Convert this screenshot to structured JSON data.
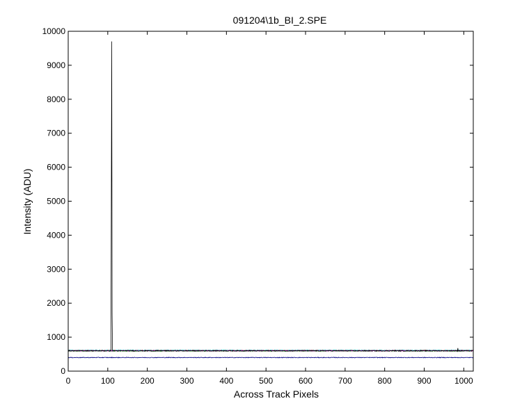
{
  "chart_data": {
    "type": "line",
    "title": "091204\\1b_BI_2.SPE",
    "xlabel": "Across Track Pixels",
    "ylabel": "Intensity (ADU)",
    "xlim": [
      0,
      1024
    ],
    "ylim": [
      0,
      10000
    ],
    "xticks": [
      0,
      100,
      200,
      300,
      400,
      500,
      600,
      700,
      800,
      900,
      1000
    ],
    "yticks": [
      0,
      1000,
      2000,
      3000,
      4000,
      5000,
      6000,
      7000,
      8000,
      9000,
      10000
    ],
    "grid": false,
    "series": [
      {
        "color": "#000000",
        "baseline": 600,
        "noise": 15,
        "spikes": [
          {
            "x": 109,
            "y": 5200
          },
          {
            "x": 110,
            "y": 9700
          },
          {
            "x": 111,
            "y": 1700
          },
          {
            "x": 985,
            "y": 680
          }
        ]
      },
      {
        "color": "#ff0000",
        "baseline": 605,
        "noise": 12,
        "spikes": []
      },
      {
        "color": "#00aa00",
        "baseline": 595,
        "noise": 12,
        "spikes": []
      },
      {
        "color": "#00c0c0",
        "baseline": 610,
        "noise": 12,
        "spikes": []
      },
      {
        "color": "#c000c0",
        "baseline": 600,
        "noise": 12,
        "spikes": []
      },
      {
        "color": "#000080",
        "baseline": 400,
        "noise": 10,
        "spikes": []
      }
    ]
  }
}
